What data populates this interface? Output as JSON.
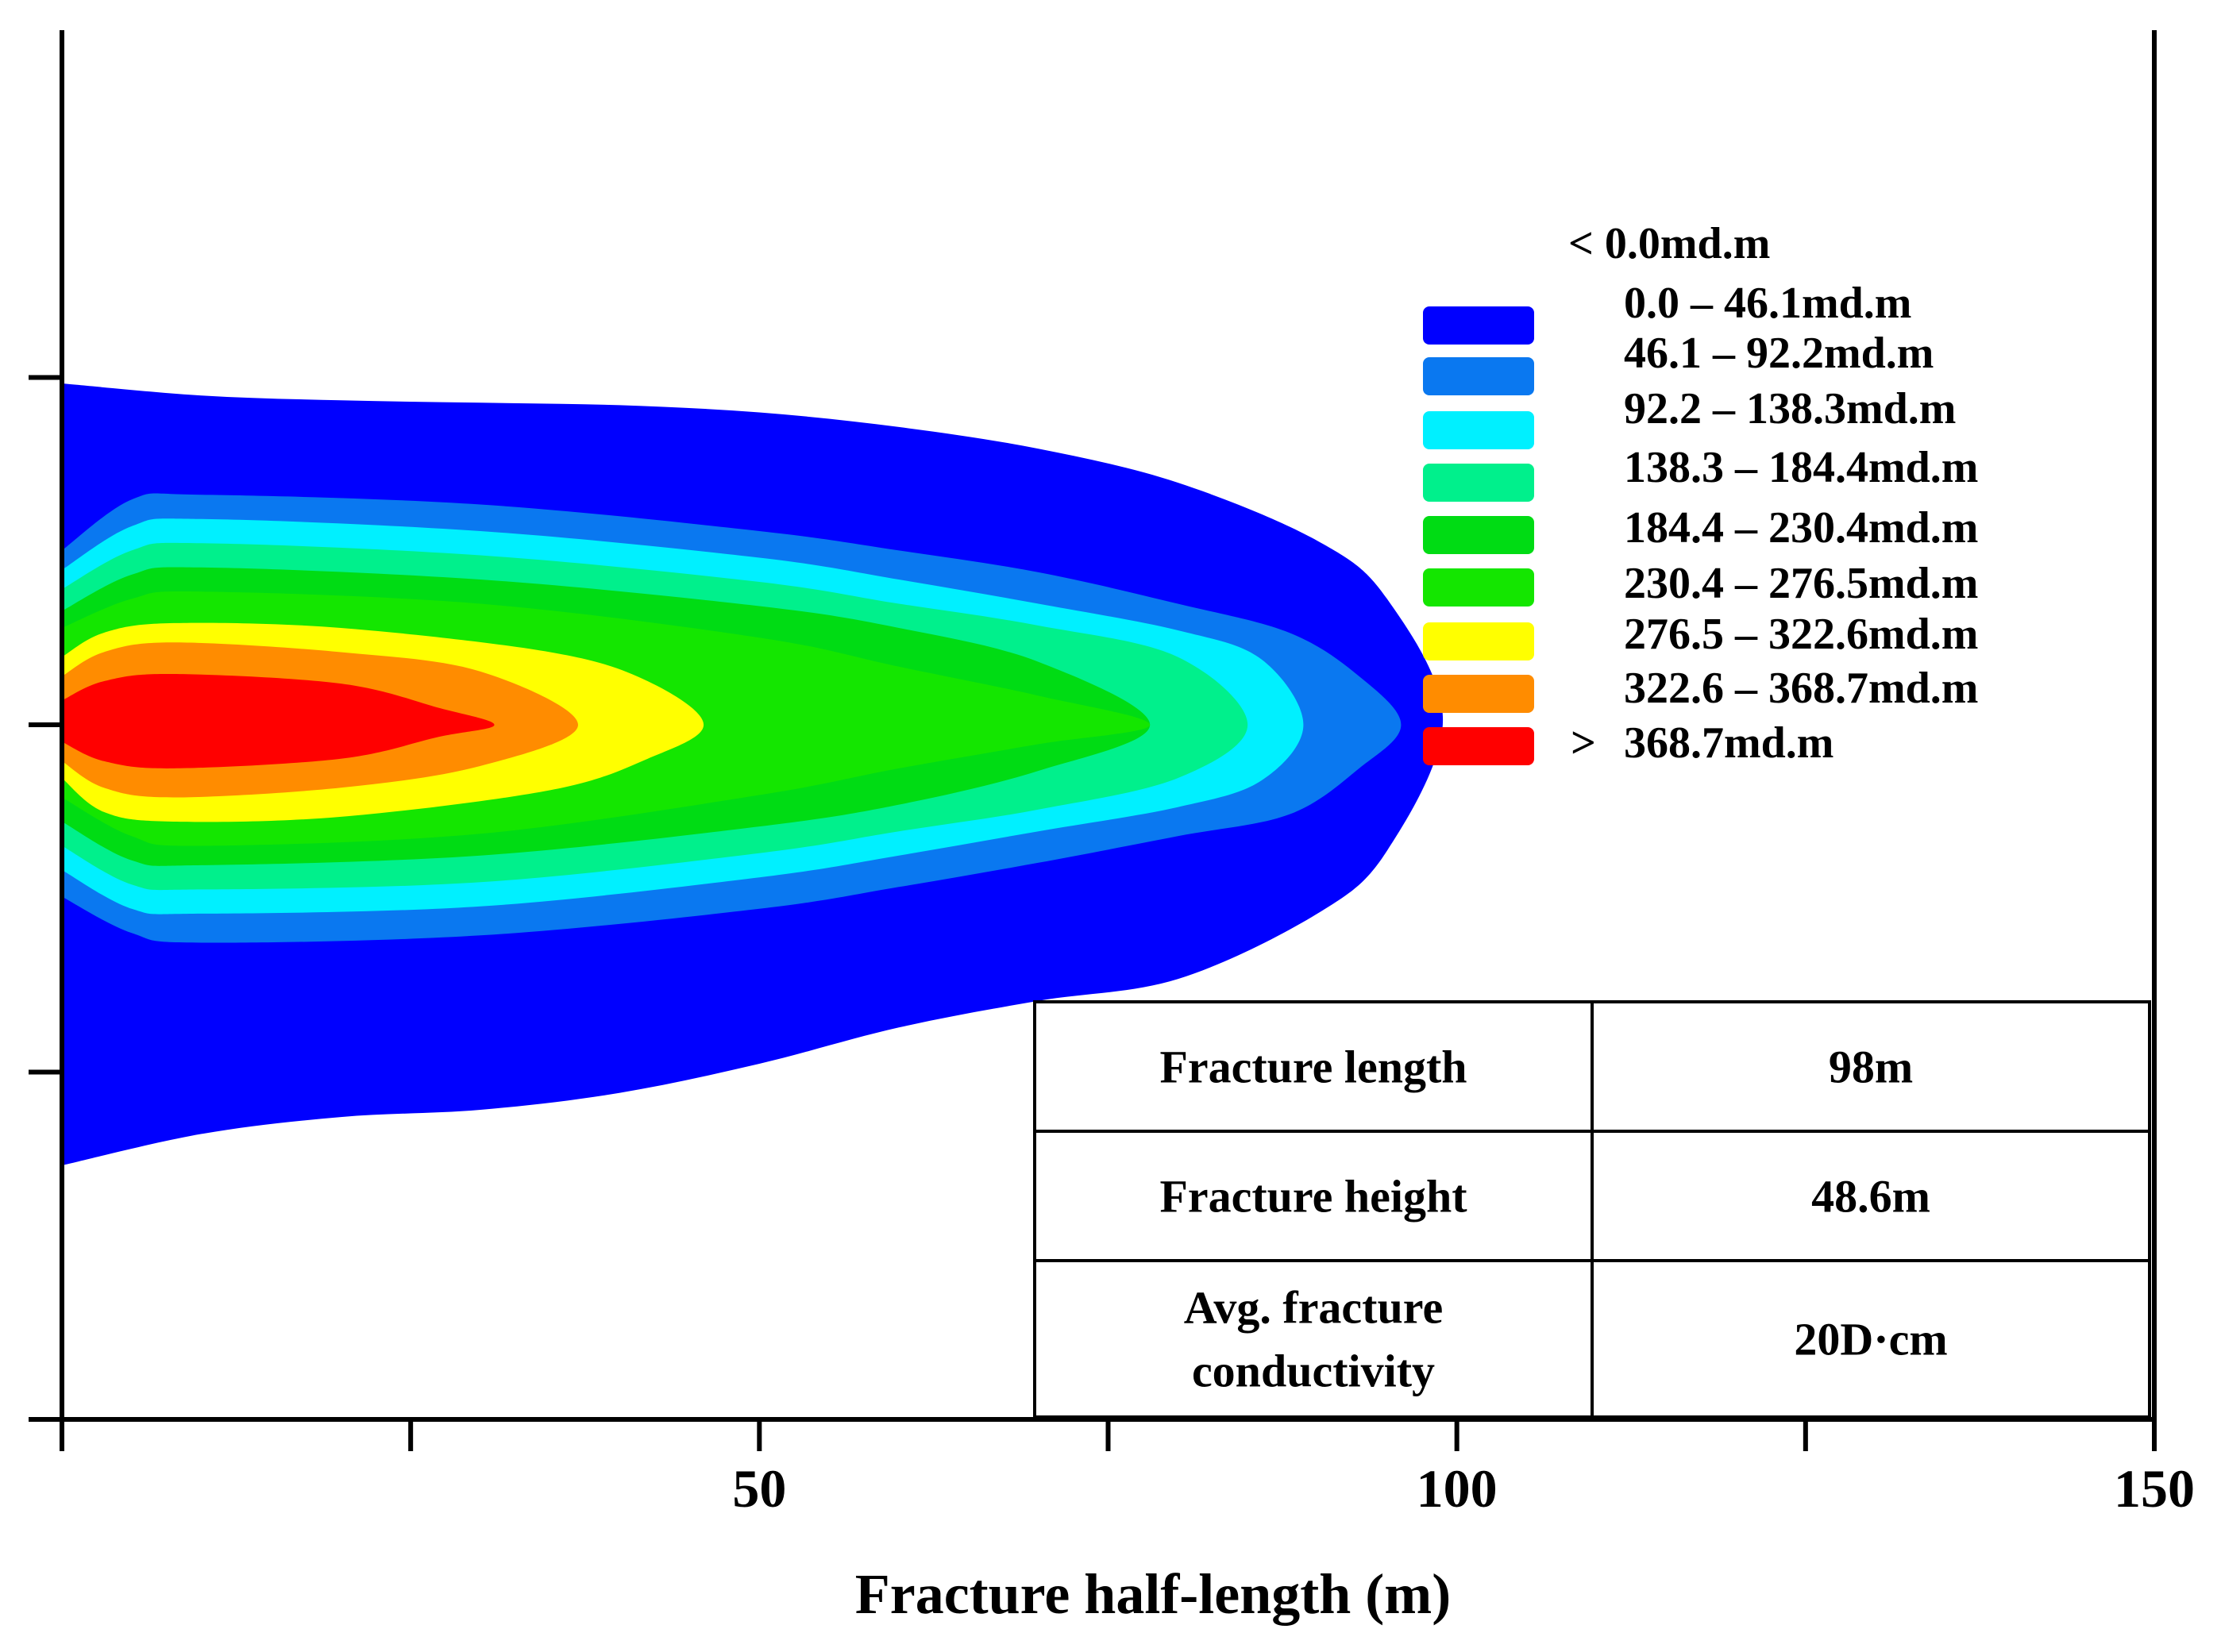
{
  "chart_data": {
    "type": "heatmap",
    "title": "",
    "xlabel": "Fracture half-length (m)",
    "ylabel": "",
    "xlim": [
      0,
      150
    ],
    "x_major_ticks": [
      0,
      25,
      50,
      75,
      100,
      125,
      150
    ],
    "x_tick_labels": [
      {
        "value": 50,
        "label": "50"
      },
      {
        "value": 100,
        "label": "100"
      },
      {
        "value": 150,
        "label": "150"
      }
    ],
    "y_tick_count": 4,
    "grid": false,
    "legend_position": "top-right",
    "legend": {
      "header": "< 0.0md.m",
      "entries": [
        {
          "label": "0.0 – 46.1md.m",
          "color": "#0000FF"
        },
        {
          "label": "46.1 – 92.2md.m",
          "color": "#0A78F0"
        },
        {
          "label": "92.2 – 138.3md.m",
          "color": "#00F0FF"
        },
        {
          "label": "138.3 – 184.4md.m",
          "color": "#00F08C"
        },
        {
          "label": "184.4 – 230.4md.m",
          "color": "#00DC14"
        },
        {
          "label": "230.4 – 276.5md.m",
          "color": "#14E600"
        },
        {
          "label": "276.5 – 322.6md.m",
          "color": "#FFFF00"
        },
        {
          "label": "322.6 – 368.7md.m",
          "color": "#FF8C00"
        },
        {
          "label": "368.7md.m",
          "prefix": ">",
          "color": "#FF0000"
        }
      ]
    },
    "contours": [
      {
        "color": "#0000FF",
        "x_tip": 99,
        "top": [
          [
            0,
            1.41
          ],
          [
            10,
            1.36
          ],
          [
            20,
            1.34
          ],
          [
            30,
            1.33
          ],
          [
            40,
            1.32
          ],
          [
            50,
            1.29
          ],
          [
            60,
            1.23
          ],
          [
            70,
            1.14
          ],
          [
            80,
            1.0
          ],
          [
            90,
            0.76
          ],
          [
            95,
            0.52
          ],
          [
            99,
            0.02
          ]
        ],
        "bottom": [
          [
            0,
            -1.82
          ],
          [
            10,
            -1.69
          ],
          [
            20,
            -1.62
          ],
          [
            30,
            -1.59
          ],
          [
            40,
            -1.52
          ],
          [
            50,
            -1.4
          ],
          [
            60,
            -1.25
          ],
          [
            70,
            -1.14
          ],
          [
            80,
            -1.05
          ],
          [
            90,
            -0.78
          ],
          [
            95,
            -0.52
          ],
          [
            99,
            -0.02
          ]
        ]
      },
      {
        "color": "#0A78F0",
        "x_tip": 96,
        "top": [
          [
            0,
            0.72
          ],
          [
            5,
            0.93
          ],
          [
            10,
            0.95
          ],
          [
            30,
            0.91
          ],
          [
            50,
            0.8
          ],
          [
            60,
            0.72
          ],
          [
            70,
            0.63
          ],
          [
            80,
            0.5
          ],
          [
            88,
            0.38
          ],
          [
            93,
            0.2
          ],
          [
            96,
            0.0
          ]
        ],
        "bottom": [
          [
            0,
            -0.71
          ],
          [
            5,
            -0.86
          ],
          [
            10,
            -0.9
          ],
          [
            30,
            -0.87
          ],
          [
            50,
            -0.76
          ],
          [
            60,
            -0.67
          ],
          [
            70,
            -0.57
          ],
          [
            80,
            -0.46
          ],
          [
            88,
            -0.37
          ],
          [
            93,
            -0.18
          ],
          [
            96,
            0.0
          ]
        ]
      },
      {
        "color": "#00F0FF",
        "x_tip": 89,
        "top": [
          [
            0,
            0.64
          ],
          [
            5,
            0.82
          ],
          [
            10,
            0.85
          ],
          [
            30,
            0.8
          ],
          [
            50,
            0.69
          ],
          [
            60,
            0.6
          ],
          [
            70,
            0.5
          ],
          [
            80,
            0.39
          ],
          [
            86,
            0.27
          ],
          [
            89,
            0.0
          ]
        ],
        "bottom": [
          [
            0,
            -0.6
          ],
          [
            5,
            -0.76
          ],
          [
            10,
            -0.78
          ],
          [
            30,
            -0.75
          ],
          [
            50,
            -0.63
          ],
          [
            60,
            -0.54
          ],
          [
            70,
            -0.44
          ],
          [
            80,
            -0.34
          ],
          [
            86,
            -0.23
          ],
          [
            89,
            0.0
          ]
        ]
      },
      {
        "color": "#00F08C",
        "x_tip": 85,
        "top": [
          [
            0,
            0.56
          ],
          [
            5,
            0.72
          ],
          [
            10,
            0.75
          ],
          [
            30,
            0.7
          ],
          [
            50,
            0.59
          ],
          [
            60,
            0.5
          ],
          [
            70,
            0.41
          ],
          [
            80,
            0.28
          ],
          [
            85,
            0.0
          ]
        ],
        "bottom": [
          [
            0,
            -0.5
          ],
          [
            5,
            -0.66
          ],
          [
            10,
            -0.68
          ],
          [
            30,
            -0.65
          ],
          [
            50,
            -0.53
          ],
          [
            60,
            -0.44
          ],
          [
            70,
            -0.35
          ],
          [
            80,
            -0.22
          ],
          [
            85,
            0.0
          ]
        ]
      },
      {
        "color": "#00DC14",
        "x_tip": 78,
        "top": [
          [
            0,
            0.47
          ],
          [
            5,
            0.62
          ],
          [
            10,
            0.65
          ],
          [
            30,
            0.6
          ],
          [
            50,
            0.49
          ],
          [
            60,
            0.4
          ],
          [
            70,
            0.26
          ],
          [
            78,
            0.0
          ]
        ],
        "bottom": [
          [
            0,
            -0.4
          ],
          [
            5,
            -0.56
          ],
          [
            10,
            -0.58
          ],
          [
            30,
            -0.54
          ],
          [
            50,
            -0.42
          ],
          [
            60,
            -0.33
          ],
          [
            70,
            -0.19
          ],
          [
            78,
            0.0
          ]
        ]
      },
      {
        "color": "#14E600",
        "x_tip": 78,
        "top": [
          [
            0,
            0.4
          ],
          [
            5,
            0.52
          ],
          [
            10,
            0.55
          ],
          [
            30,
            0.5
          ],
          [
            50,
            0.36
          ],
          [
            60,
            0.24
          ],
          [
            70,
            0.12
          ],
          [
            78,
            0.0
          ]
        ],
        "bottom": [
          [
            0,
            -0.3
          ],
          [
            5,
            -0.46
          ],
          [
            10,
            -0.5
          ],
          [
            30,
            -0.45
          ],
          [
            50,
            -0.29
          ],
          [
            60,
            -0.18
          ],
          [
            70,
            -0.08
          ],
          [
            78,
            0.0
          ]
        ]
      },
      {
        "color": "#FFFF00",
        "x_tip": 46,
        "top": [
          [
            0,
            0.28
          ],
          [
            3,
            0.38
          ],
          [
            8,
            0.42
          ],
          [
            20,
            0.4
          ],
          [
            35,
            0.3
          ],
          [
            42,
            0.18
          ],
          [
            46,
            0.0
          ]
        ],
        "bottom": [
          [
            0,
            -0.22
          ],
          [
            3,
            -0.36
          ],
          [
            8,
            -0.4
          ],
          [
            20,
            -0.38
          ],
          [
            35,
            -0.27
          ],
          [
            42,
            -0.14
          ],
          [
            46,
            0.0
          ]
        ]
      },
      {
        "color": "#FF8C00",
        "x_tip": 37,
        "top": [
          [
            0,
            0.2
          ],
          [
            3,
            0.3
          ],
          [
            8,
            0.34
          ],
          [
            20,
            0.3
          ],
          [
            30,
            0.22
          ],
          [
            37,
            0.0
          ]
        ],
        "bottom": [
          [
            0,
            -0.15
          ],
          [
            3,
            -0.26
          ],
          [
            8,
            -0.3
          ],
          [
            20,
            -0.26
          ],
          [
            30,
            -0.17
          ],
          [
            37,
            0.0
          ]
        ]
      },
      {
        "color": "#FF0000",
        "x_tip": 31,
        "top": [
          [
            0,
            0.1
          ],
          [
            3,
            0.18
          ],
          [
            8,
            0.21
          ],
          [
            20,
            0.17
          ],
          [
            27,
            0.07
          ],
          [
            31,
            0.0
          ]
        ],
        "bottom": [
          [
            0,
            -0.07
          ],
          [
            3,
            -0.15
          ],
          [
            8,
            -0.18
          ],
          [
            20,
            -0.14
          ],
          [
            27,
            -0.05
          ],
          [
            31,
            0.0
          ]
        ]
      }
    ]
  },
  "table": {
    "rows": [
      {
        "label": [
          "Fracture length"
        ],
        "value": "98m"
      },
      {
        "label": [
          "Fracture height"
        ],
        "value": "48.6m"
      },
      {
        "label": [
          "Avg. fracture",
          "conductivity"
        ],
        "value": "20D·cm"
      }
    ]
  }
}
